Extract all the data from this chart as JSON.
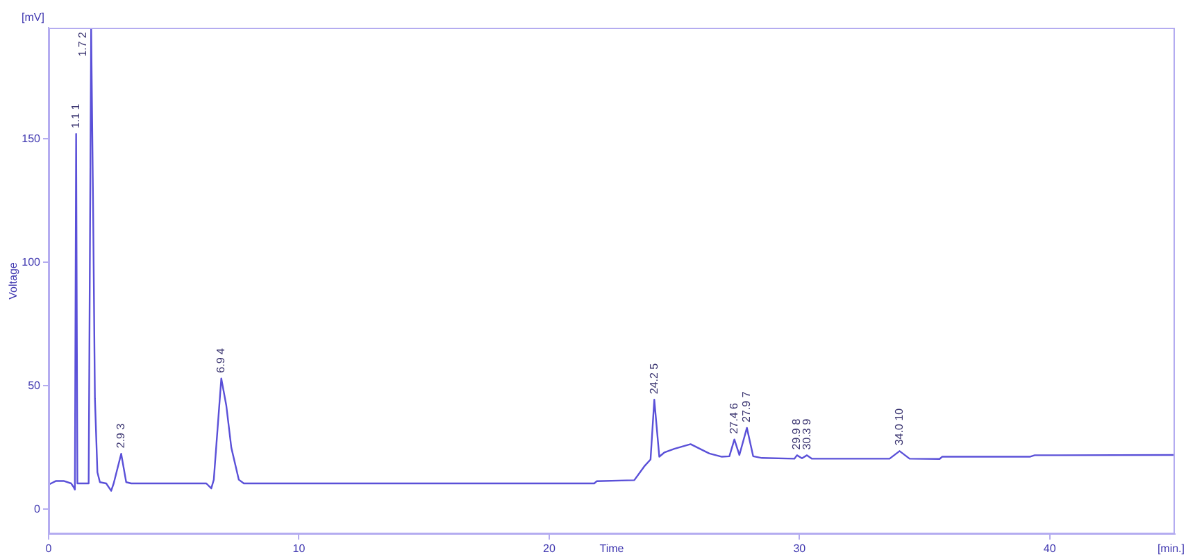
{
  "chart_data": {
    "type": "line",
    "xlabel": "Time",
    "ylabel": "Voltage",
    "annotations": [
      "[mV]",
      "[min.]",
      {
        "text": "1.1 1",
        "x": 1.1,
        "y": 152
      },
      {
        "text": "1.7 2",
        "x": 1.7,
        "y": 195
      },
      {
        "text": "2.9 3",
        "x": 2.9,
        "y": 22.5
      },
      {
        "text": "6.9 4",
        "x": 6.9,
        "y": 53
      },
      {
        "text": "24.2 5",
        "x": 24.2,
        "y": 44.4
      },
      {
        "text": "27.4 6",
        "x": 27.4,
        "y": 28.3
      },
      {
        "text": "27.9 7",
        "x": 27.9,
        "y": 33
      },
      {
        "text": "29.9 8",
        "x": 29.9,
        "y": 21.9
      },
      {
        "text": "30.3 9",
        "x": 30.3,
        "y": 21.9
      },
      {
        "text": "34.0 10",
        "x": 34.0,
        "y": 23.6
      }
    ],
    "x": [
      0,
      0.3,
      0.6,
      0.9,
      1.0,
      1.05,
      1.1,
      1.15,
      1.25,
      1.6,
      1.7,
      1.78,
      1.85,
      1.95,
      2.05,
      2.3,
      2.5,
      2.6,
      2.9,
      3.1,
      3.3,
      6.3,
      6.5,
      6.6,
      6.9,
      7.1,
      7.3,
      7.6,
      7.8,
      21.8,
      21.9,
      23.4,
      23.8,
      24.05,
      24.2,
      24.4,
      24.6,
      25.0,
      25.65,
      26.4,
      26.9,
      27.2,
      27.4,
      27.6,
      27.9,
      28.15,
      28.5,
      29.8,
      29.9,
      30.1,
      30.3,
      30.5,
      33.6,
      34.0,
      34.4,
      35.6,
      35.7,
      39.2,
      39.4,
      45
    ],
    "series": [
      {
        "color": "#5a50d8",
        "values": [
          10,
          11.5,
          11.5,
          10.5,
          9,
          8,
          152,
          10.5,
          10.5,
          10.5,
          195,
          120,
          45,
          15,
          11,
          10.5,
          7.5,
          10.5,
          22.5,
          11,
          10.5,
          10.5,
          8.5,
          12,
          53,
          42,
          25,
          12,
          10.5,
          10.5,
          11.4,
          11.8,
          17.4,
          20.2,
          44.4,
          21.3,
          23,
          24.5,
          26.4,
          22.6,
          21.3,
          21.5,
          28.3,
          22,
          33,
          21.5,
          20.8,
          20.5,
          21.9,
          20.7,
          21.9,
          20.5,
          20.5,
          23.6,
          20.5,
          20.4,
          21.3,
          21.3,
          21.9,
          22
        ]
      }
    ],
    "xlim": [
      0,
      45
    ],
    "ylim": [
      -10,
      195
    ],
    "xticks": [
      0,
      10,
      20,
      30,
      40
    ],
    "yticks": [
      0,
      50,
      100,
      150
    ]
  }
}
